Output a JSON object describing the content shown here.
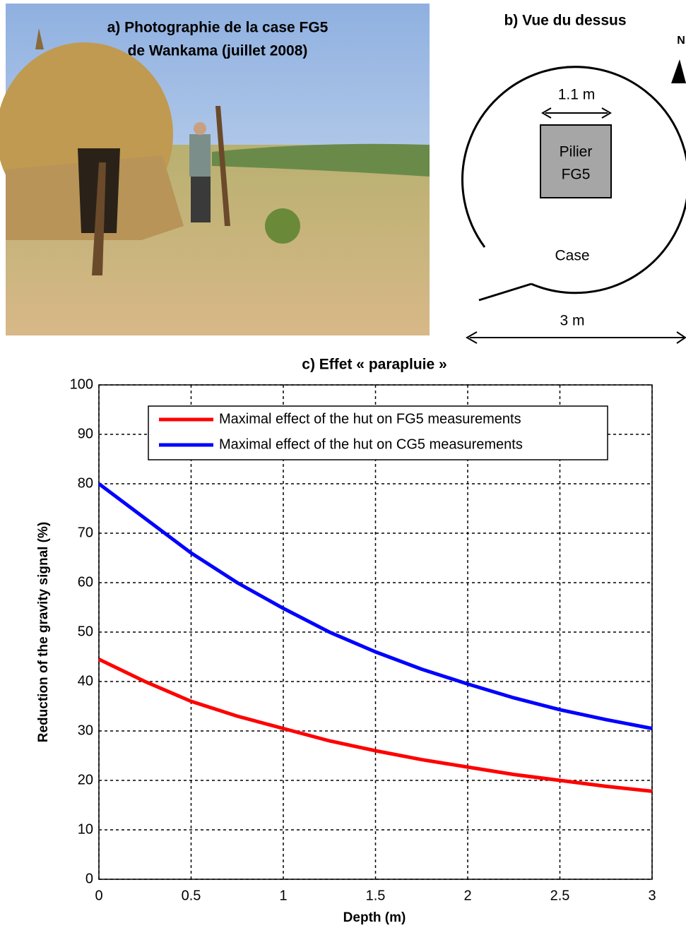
{
  "photo": {
    "caption": [
      "a) Photographie de la case FG5",
      "de Wankama (juillet 2008)"
    ]
  },
  "diagram": {
    "title": "b) Vue du dessus",
    "north": "N",
    "pillar_width": "1.1 m",
    "pillar": [
      "Pilier",
      "FG5"
    ],
    "hut": "Case",
    "hut_width": "3 m"
  },
  "chart_data": {
    "type": "line",
    "title": "c) Effet  « parapluie »",
    "xlabel": "Depth (m)",
    "ylabel": "Reduction of the gravity signal (%)",
    "x": [
      0,
      0.25,
      0.5,
      0.75,
      1,
      1.25,
      1.5,
      1.75,
      2,
      2.25,
      2.5,
      2.75,
      3
    ],
    "series": [
      {
        "name": "Maximal effect of the hut on FG5 measurements",
        "color": "#ff0000",
        "values": [
          44.5,
          40,
          36,
          33,
          30.5,
          28,
          26,
          24.2,
          22.7,
          21.2,
          20,
          18.8,
          17.8
        ]
      },
      {
        "name": "Maximal effect of the hut on CG5 measurements",
        "color": "#0000ff",
        "values": [
          80,
          73,
          66,
          60,
          54.8,
          50,
          46,
          42.5,
          39.5,
          36.7,
          34.3,
          32.3,
          30.5
        ]
      }
    ],
    "xlim": [
      0,
      3
    ],
    "xticks": [
      0,
      0.5,
      1,
      1.5,
      2,
      2.5,
      3
    ],
    "ylim": [
      0,
      100
    ],
    "yticks": [
      0,
      10,
      20,
      30,
      40,
      50,
      60,
      70,
      80,
      90,
      100
    ],
    "grid": true,
    "legend": "upper right"
  }
}
